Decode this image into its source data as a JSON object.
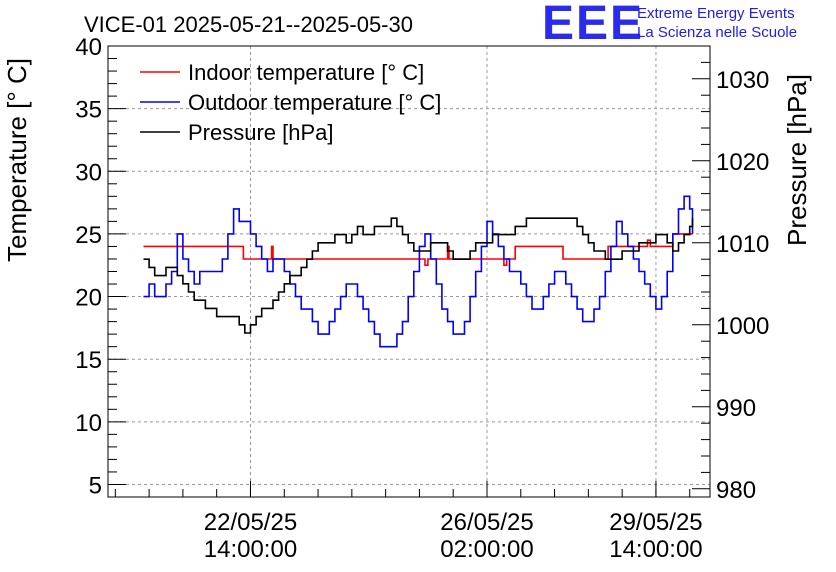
{
  "header": {
    "title": "VICE-01 2025-05-21--2025-05-30",
    "logo_mark": "EEE",
    "logo_line1": "Extreme Energy Events",
    "logo_line2": "La Scienza nelle Scuole"
  },
  "chart_data": {
    "type": "line",
    "title": "VICE-01 2025-05-21--2025-05-30",
    "ylabel": "Temperature [° C]",
    "y2label": "Pressure [hPa]",
    "ylim": [
      4,
      40
    ],
    "y2lim": [
      979,
      1034
    ],
    "xlim_hours": [
      -12.6,
      201.2
    ],
    "x_unit": "hours since 2025-05-21 00:00:00",
    "x_ticks": [
      {
        "hours": 38,
        "line1": "22/05/25",
        "line2": "14:00:00"
      },
      {
        "hours": 122,
        "line1": "26/05/25",
        "line2": "02:00:00"
      },
      {
        "hours": 182,
        "line1": "29/05/25",
        "line2": "14:00:00"
      }
    ],
    "y_ticks": [
      5,
      10,
      15,
      20,
      25,
      30,
      35,
      40
    ],
    "y2_ticks": [
      980,
      990,
      1000,
      1010,
      1020,
      1030
    ],
    "grid": true,
    "legend_position": "top-left",
    "series": [
      {
        "name": "Indoor temperature [° C]",
        "axis": "left",
        "color": "#ff0000",
        "x": [
          0,
          35.5,
          35.5,
          45.5,
          45.5,
          46,
          46,
          50,
          50,
          100,
          100,
          101,
          101,
          108,
          108,
          108.5,
          108.5,
          119,
          119,
          128,
          128,
          129,
          129,
          132,
          132,
          149,
          149,
          150,
          150,
          165,
          165,
          167,
          167,
          179,
          179,
          180,
          180,
          188,
          188,
          189,
          189,
          195
        ],
        "values": [
          24,
          24,
          23,
          23,
          24,
          24,
          23,
          23,
          23,
          23,
          22.5,
          22.5,
          23,
          23,
          24,
          24,
          23,
          23,
          23,
          23,
          22.5,
          22.5,
          23,
          23,
          24,
          24,
          23,
          23,
          23,
          23,
          24,
          24,
          24,
          24,
          24.5,
          24.5,
          24,
          24,
          25,
          25,
          25,
          25
        ]
      },
      {
        "name": "Outdoor temperature [° C]",
        "axis": "left",
        "color": "#0000ff",
        "x": [
          0,
          2,
          4,
          6,
          8,
          10,
          12,
          14,
          16,
          18,
          20,
          22,
          24,
          26,
          28,
          30,
          32,
          34,
          36,
          38,
          40,
          42,
          44,
          46,
          48,
          50,
          52,
          54,
          56,
          58,
          60,
          62,
          64,
          66,
          68,
          70,
          72,
          74,
          76,
          78,
          80,
          82,
          84,
          86,
          88,
          90,
          92,
          94,
          96,
          98,
          100,
          102,
          104,
          106,
          108,
          110,
          112,
          114,
          116,
          118,
          120,
          122,
          124,
          126,
          128,
          130,
          132,
          134,
          136,
          138,
          140,
          142,
          144,
          146,
          148,
          150,
          152,
          154,
          156,
          158,
          160,
          162,
          164,
          166,
          168,
          170,
          172,
          174,
          176,
          178,
          180,
          182,
          184,
          186,
          188,
          190,
          192,
          194,
          195
        ],
        "values": [
          20,
          21,
          20,
          20,
          21,
          22,
          25,
          23,
          22,
          21,
          22,
          22,
          22,
          22,
          23,
          25,
          27,
          26,
          26,
          25,
          24,
          23,
          22,
          23,
          23,
          22,
          21,
          20,
          19,
          19,
          18,
          17,
          17,
          18,
          19,
          20,
          21,
          21,
          20,
          19,
          18,
          17,
          16,
          16,
          16,
          17,
          18,
          20,
          22,
          24,
          25,
          23,
          21,
          19,
          18,
          17,
          17,
          18,
          20,
          22,
          24,
          26,
          25,
          24,
          23,
          22,
          22,
          21,
          20,
          19,
          19,
          20,
          21,
          22,
          22,
          21,
          20,
          19,
          18,
          18,
          19,
          20,
          22,
          24,
          26,
          25,
          24,
          23,
          22,
          21,
          20,
          19,
          20,
          22,
          25,
          27,
          28,
          27,
          25
        ]
      },
      {
        "name": "Pressure [hPa]",
        "axis": "right",
        "color": "#000000",
        "x": [
          0,
          2,
          4,
          6,
          8,
          10,
          12,
          14,
          16,
          18,
          20,
          22,
          24,
          26,
          28,
          30,
          32,
          34,
          36,
          38,
          40,
          42,
          44,
          46,
          48,
          50,
          52,
          54,
          56,
          58,
          60,
          62,
          64,
          66,
          68,
          70,
          72,
          74,
          76,
          78,
          80,
          82,
          84,
          86,
          88,
          90,
          92,
          94,
          96,
          98,
          100,
          102,
          104,
          106,
          108,
          110,
          112,
          114,
          116,
          118,
          120,
          122,
          124,
          126,
          128,
          130,
          132,
          134,
          136,
          138,
          140,
          142,
          144,
          146,
          148,
          150,
          152,
          154,
          156,
          158,
          160,
          162,
          164,
          166,
          168,
          170,
          172,
          174,
          176,
          178,
          180,
          182,
          184,
          186,
          188,
          190,
          192,
          194,
          195
        ],
        "values": [
          1008,
          1007,
          1006,
          1006,
          1007,
          1007,
          1006,
          1005,
          1004,
          1003,
          1003,
          1002,
          1002,
          1001,
          1001,
          1001,
          1001,
          1000,
          999,
          1000,
          1001,
          1002,
          1002,
          1003,
          1004,
          1005,
          1006,
          1006,
          1007,
          1008,
          1009,
          1010,
          1010,
          1010,
          1011,
          1011,
          1010,
          1011,
          1012,
          1011,
          1011,
          1012,
          1012,
          1012,
          1013,
          1012,
          1011,
          1010,
          1009,
          1009,
          1009,
          1010,
          1010,
          1010,
          1009,
          1008,
          1008,
          1008,
          1009,
          1010,
          1010,
          1010,
          1011,
          1011,
          1011,
          1011,
          1012,
          1012,
          1013,
          1013,
          1013,
          1013,
          1013,
          1013,
          1013,
          1013,
          1013,
          1012,
          1011,
          1010,
          1009,
          1009,
          1008,
          1008,
          1008,
          1009,
          1009,
          1009,
          1010,
          1010,
          1010,
          1011,
          1011,
          1010,
          1009,
          1010,
          1011,
          1012,
          1013
        ]
      }
    ]
  }
}
